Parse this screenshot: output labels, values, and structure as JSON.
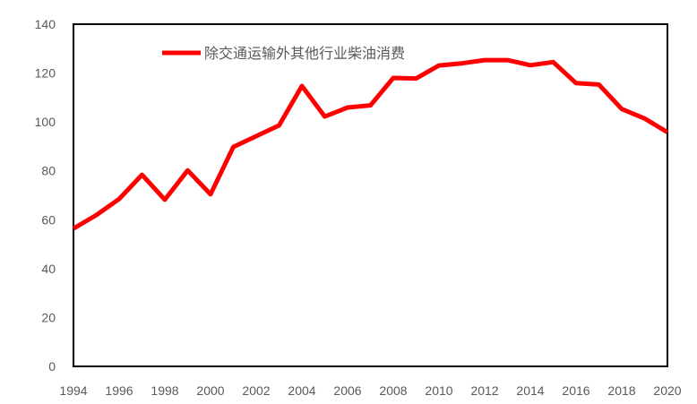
{
  "chart_data": {
    "type": "line",
    "title": "",
    "xlabel": "",
    "ylabel": "",
    "x": [
      1994,
      1995,
      1996,
      1997,
      1998,
      1999,
      2000,
      2001,
      2002,
      2003,
      2004,
      2005,
      2006,
      2007,
      2008,
      2009,
      2010,
      2011,
      2012,
      2013,
      2014,
      2015,
      2016,
      2017,
      2018,
      2019,
      2020
    ],
    "series": [
      {
        "name": "除交通运输外其他行业柴油消费",
        "color": "#FF0000",
        "values": [
          56.4,
          61.9,
          68.5,
          78.4,
          68.2,
          80.2,
          70.4,
          89.8,
          94.2,
          98.6,
          114.7,
          102.2,
          105.9,
          106.8,
          118.0,
          117.8,
          123.1,
          124.0,
          125.3,
          125.3,
          123.2,
          124.5,
          115.9,
          115.3,
          105.3,
          101.4,
          95.8
        ]
      }
    ],
    "xlim": [
      1994,
      2020
    ],
    "ylim": [
      0,
      140
    ],
    "x_ticks": [
      "1994",
      "1996",
      "1998",
      "2000",
      "2002",
      "2004",
      "2006",
      "2008",
      "2010",
      "2012",
      "2014",
      "2016",
      "2018",
      "2020"
    ],
    "y_ticks": [
      "0",
      "20",
      "40",
      "60",
      "80",
      "100",
      "120",
      "140"
    ],
    "grid": false,
    "legend_position": "top-left inside plot"
  },
  "legend": {
    "label": "除交通运输外其他行业柴油消费"
  }
}
